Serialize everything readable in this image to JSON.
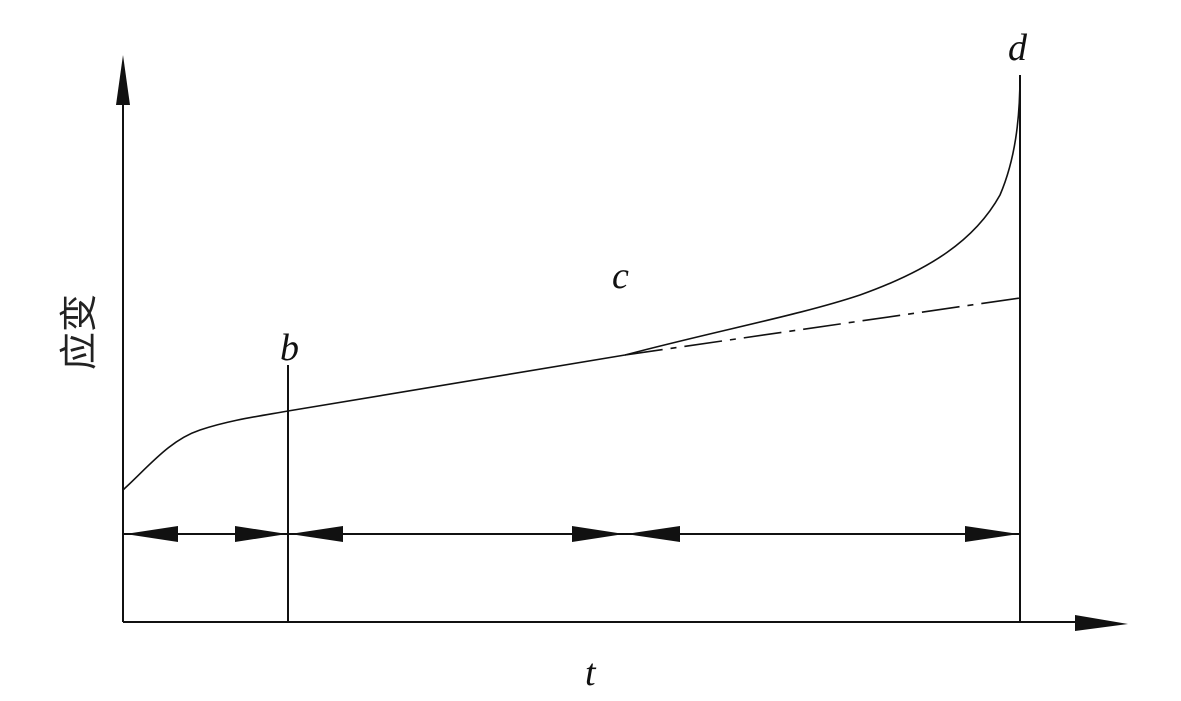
{
  "diagram": {
    "y_axis_label": "应变",
    "x_axis_label": "t",
    "point_labels": {
      "b": "b",
      "c": "c",
      "d": "d"
    },
    "colors": {
      "line": "#111111",
      "background": "#ffffff"
    }
  }
}
